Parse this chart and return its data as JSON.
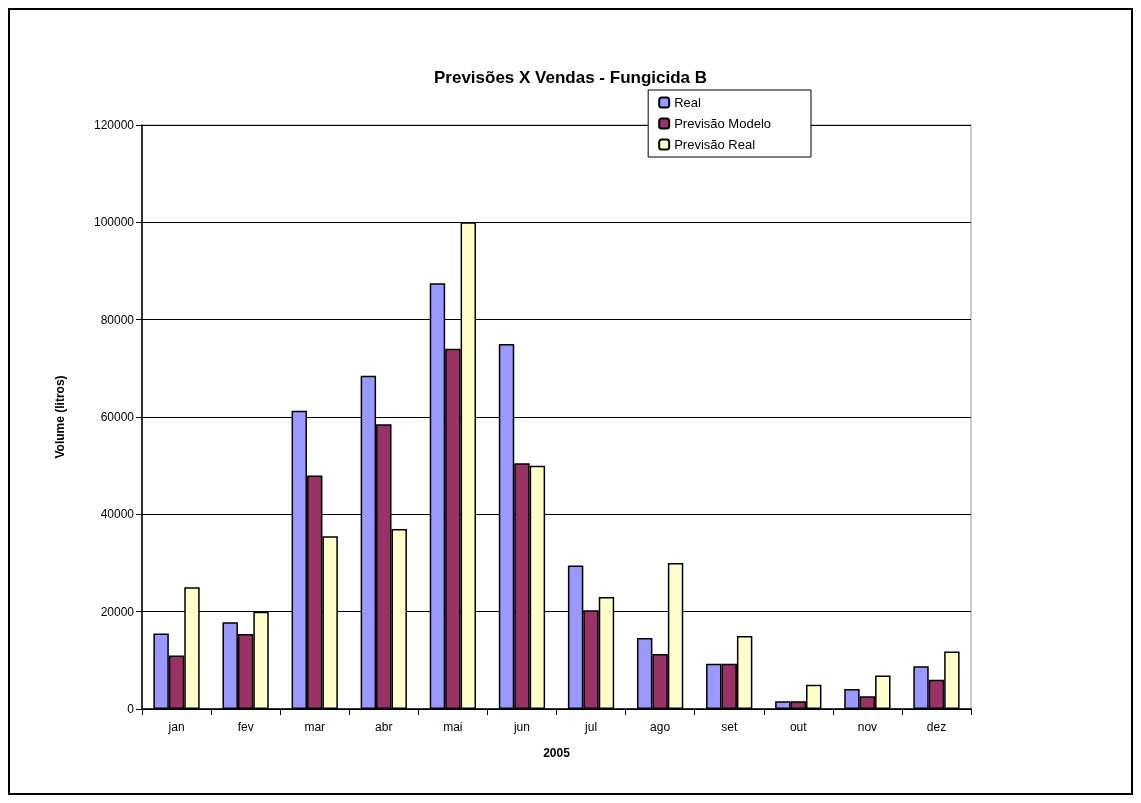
{
  "chart_data": {
    "type": "bar",
    "title": "Previsões X Vendas - Fungicida B",
    "xlabel": "2005",
    "ylabel": "Volume (litros)",
    "categories": [
      "jan",
      "fev",
      "mar",
      "abr",
      "mai",
      "jun",
      "jul",
      "ago",
      "set",
      "out",
      "nov",
      "dez"
    ],
    "series": [
      {
        "name": "Real",
        "color": "#9999ff",
        "values": [
          15500,
          17800,
          61300,
          68500,
          87500,
          75000,
          29500,
          14600,
          9300,
          1600,
          4100,
          8800
        ]
      },
      {
        "name": "Previsão Modelo",
        "color": "#993366",
        "values": [
          11000,
          15400,
          48000,
          58500,
          74000,
          50500,
          20300,
          11300,
          9300,
          1600,
          2600,
          6000
        ]
      },
      {
        "name": "Previsão Real",
        "color": "#ffffcc",
        "values": [
          25000,
          20000,
          35500,
          37000,
          100000,
          50000,
          23000,
          30000,
          15000,
          5000,
          6900,
          11800
        ]
      }
    ],
    "ylim": [
      0,
      120000
    ],
    "yticks": [
      0,
      20000,
      40000,
      60000,
      80000,
      100000,
      120000
    ],
    "grid": "y",
    "legend": "top right"
  }
}
